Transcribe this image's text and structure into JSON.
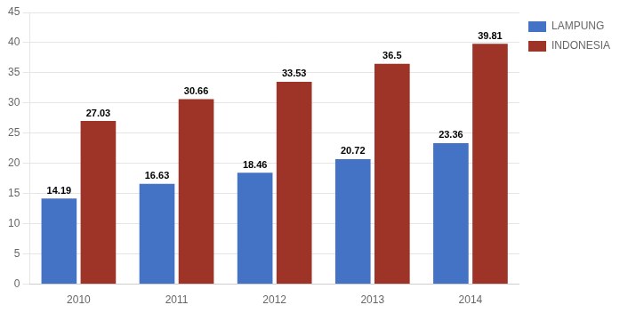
{
  "chart_data": {
    "type": "bar",
    "categories": [
      "2010",
      "2011",
      "2012",
      "2013",
      "2014"
    ],
    "series": [
      {
        "name": "LAMPUNG",
        "color": "#4472C4",
        "values": [
          14.19,
          16.63,
          18.46,
          20.72,
          23.36
        ]
      },
      {
        "name": "INDONESIA",
        "color": "#9E3328",
        "values": [
          27.03,
          30.66,
          33.53,
          36.5,
          39.81
        ]
      }
    ],
    "ylim": [
      0,
      45
    ],
    "yticks": [
      0,
      5,
      10,
      15,
      20,
      25,
      30,
      35,
      40,
      45
    ],
    "grid": true,
    "legend": "right",
    "data_labels": true
  }
}
